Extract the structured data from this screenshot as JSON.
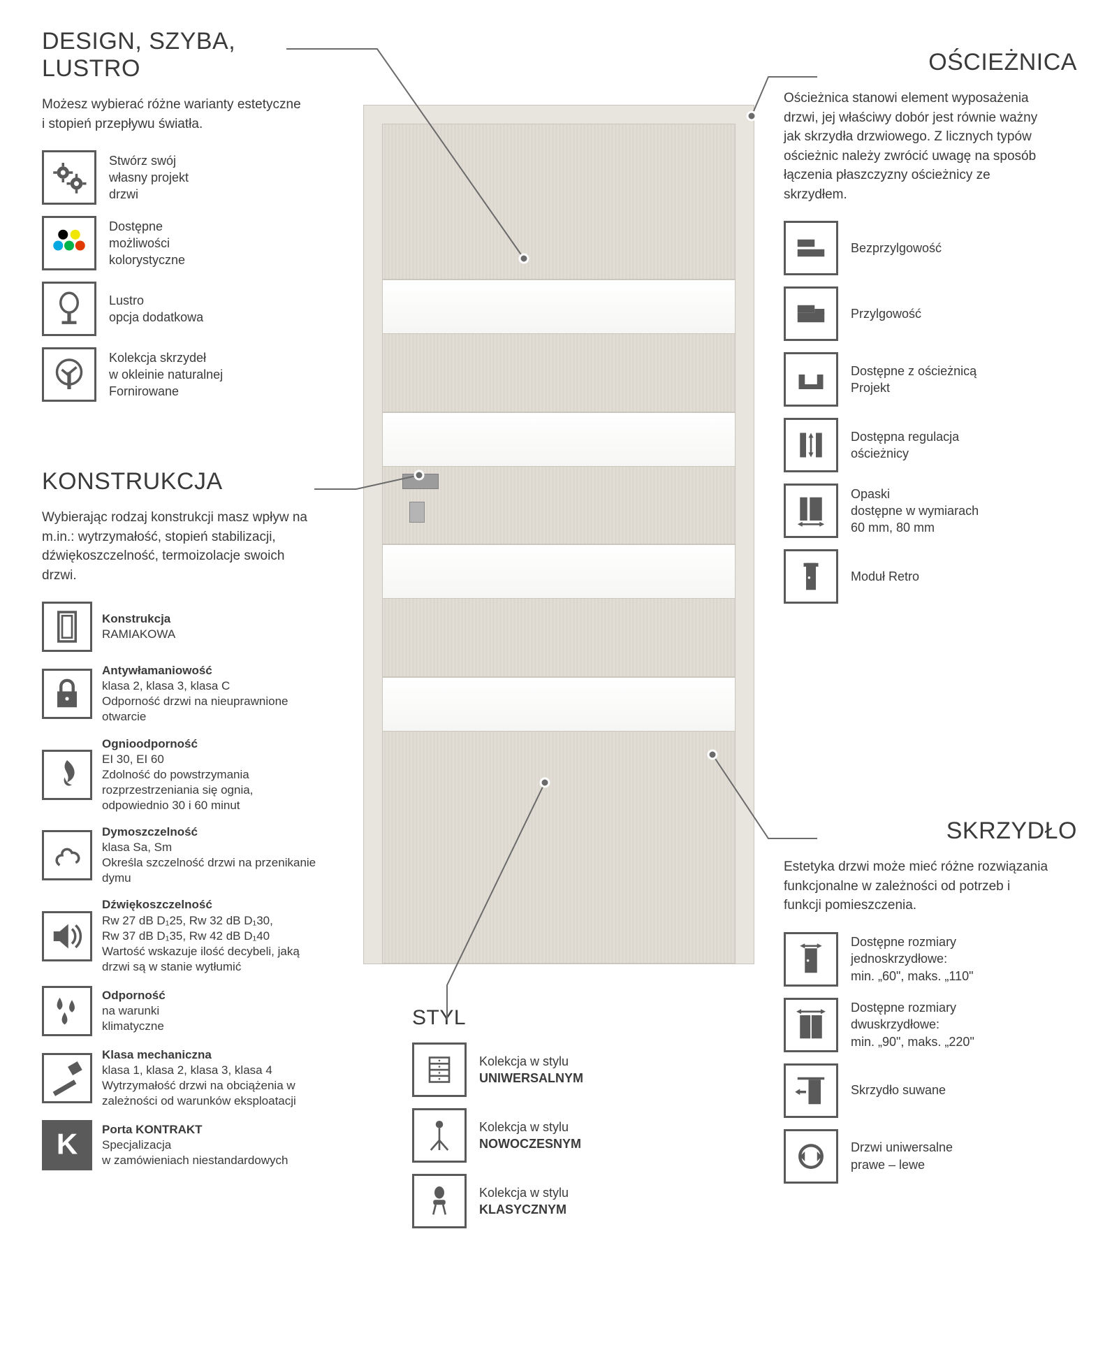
{
  "colors": {
    "text": "#3a3a3a",
    "icon_border": "#5a5a5a",
    "leader": "#6b6b6b",
    "door_bg": "#e2ded6",
    "frame_bg": "#e8e4de"
  },
  "design": {
    "title": "DESIGN, SZYBA, LUSTRO",
    "desc": "Możesz wybierać różne warianty estetyczne i stopień przepływu światła.",
    "items": [
      {
        "label": "Stwórz swój\nwłasny projekt\ndrzwi"
      },
      {
        "label": "Dostępne\nmożliwości\nkolorystyczne"
      },
      {
        "label": "Lustro\nopcja dodatkowa"
      },
      {
        "label": "Kolekcja skrzydeł\nw okleinie naturalnej\nFornirowane"
      }
    ]
  },
  "konstrukcja": {
    "title": "KONSTRUKCJA",
    "desc": "Wybierając rodzaj konstrukcji masz wpływ na m.in.: wytrzymałość, stopień stabilizacji, dźwiękoszczelność, termoizolacje swoich drzwi.",
    "items": [
      {
        "title": "Konstrukcja",
        "sub": "RAMIAKOWA"
      },
      {
        "title": "Antywłamaniowość",
        "sub": "klasa 2, klasa 3, klasa C\nOdporność drzwi na nieuprawnione otwarcie"
      },
      {
        "title": "Ognioodporność",
        "sub": "EI 30, EI 60\nZdolność do powstrzymania rozprzestrzeniania się ognia, odpowiednio 30 i 60 minut"
      },
      {
        "title": "Dymoszczelność",
        "sub": "klasa Sa, Sm\nOkreśla szczelność drzwi na przenikanie dymu"
      },
      {
        "title": "Dźwiękoszczelność",
        "sub": "Rw 27 dB D₁25, Rw 32 dB D₁30,\nRw 37 dB D₁35, Rw 42 dB D₁40\nWartość wskazuje ilość decybeli, jaką drzwi są w stanie wytłumić"
      },
      {
        "title": "Odporność",
        "sub": "na warunki\nklimatyczne"
      },
      {
        "title": "Klasa mechaniczna",
        "sub": "klasa 1, klasa 2, klasa 3, klasa 4\nWytrzymałość drzwi na obciążenia w zależności od warunków eksploatacji"
      },
      {
        "title": "Porta KONTRAKT",
        "sub": "Specjalizacja\nw zamówieniach niestandardowych"
      }
    ]
  },
  "oscieznica": {
    "title": "OŚCIEŻNICA",
    "desc": "Ościeżnica stanowi element wyposażenia drzwi, jej właściwy dobór jest równie ważny jak skrzydła drzwiowego. Z licznych typów ościeżnic należy zwrócić uwagę na sposób łączenia płaszczyzny ościeżnicy ze skrzydłem.",
    "items": [
      {
        "label": "Bezprzylgowość"
      },
      {
        "label": "Przylgowość"
      },
      {
        "label": "Dostępne z ościeżnicą\nProjekt"
      },
      {
        "label": "Dostępna regulacja\nościeżnicy"
      },
      {
        "label": "Opaski\ndostępne w wymiarach\n60 mm, 80 mm"
      },
      {
        "label": "Moduł Retro"
      }
    ]
  },
  "skrzydlo": {
    "title": "SKRZYDŁO",
    "desc": "Estetyka drzwi może mieć różne rozwiązania funkcjonalne w zależności od potrzeb i funkcji pomieszczenia.",
    "items": [
      {
        "label": "Dostępne rozmiary\njednoskrzydłowe:\nmin. „60\", maks. „110\""
      },
      {
        "label": "Dostępne rozmiary\ndwuskrzydłowe:\nmin. „90\", maks. „220\""
      },
      {
        "label": "Skrzydło suwane"
      },
      {
        "label": "Drzwi uniwersalne\nprawe – lewe"
      }
    ]
  },
  "styl": {
    "title": "STYL",
    "items": [
      {
        "pre": "Kolekcja w stylu",
        "label": "UNIWERSALNYM"
      },
      {
        "pre": "Kolekcja w stylu",
        "label": "NOWOCZESNYM"
      },
      {
        "pre": "Kolekcja w stylu",
        "label": "KLASYCZNYM"
      }
    ]
  }
}
